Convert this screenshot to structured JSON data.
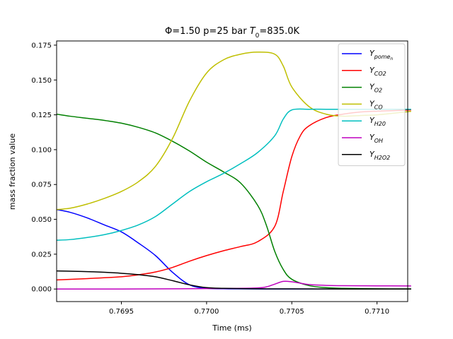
{
  "chart_data": {
    "type": "line",
    "title_prefix": "Φ=1.50 p=25 bar ",
    "title_var": "T",
    "title_sub": "0",
    "title_suffix": "=835.0K",
    "xlabel": "Time (ms)",
    "ylabel": "mass fraction value",
    "xlim": [
      0.76912,
      0.77118
    ],
    "ylim": [
      -0.009,
      0.178
    ],
    "x_ticks": [
      0.7695,
      0.77,
      0.7705,
      0.771
    ],
    "x_tick_labels": [
      "0.7695",
      "0.7700",
      "0.7705",
      "0.7710"
    ],
    "y_ticks": [
      0.0,
      0.025,
      0.05,
      0.075,
      0.1,
      0.125,
      0.15,
      0.175
    ],
    "y_tick_labels": [
      "0.000",
      "0.025",
      "0.050",
      "0.075",
      "0.100",
      "0.125",
      "0.150",
      "0.175"
    ],
    "grid": false,
    "legend_position": "top-right",
    "series": [
      {
        "name": "Y_pome_n",
        "label_main": "Y",
        "label_sub": "pome",
        "label_subsub": "n",
        "color": "#0000ff",
        "x": [
          0.76912,
          0.7692,
          0.7693,
          0.7694,
          0.7695,
          0.7696,
          0.7697,
          0.7698,
          0.7699,
          0.77,
          0.7701,
          0.7702,
          0.7704,
          0.7706,
          0.7708,
          0.771,
          0.7712
        ],
        "y": [
          0.057,
          0.055,
          0.051,
          0.046,
          0.041,
          0.033,
          0.024,
          0.012,
          0.003,
          0.0005,
          0.0002,
          0.0001,
          0.0,
          0.0,
          0.0,
          0.0,
          0.0
        ]
      },
      {
        "name": "Y_CO2",
        "label_main": "Y",
        "label_sub": "CO2",
        "label_subsub": "",
        "color": "#ff0000",
        "x": [
          0.76912,
          0.7693,
          0.7695,
          0.7696,
          0.7697,
          0.7698,
          0.7699,
          0.77,
          0.7701,
          0.7702,
          0.7703,
          0.7703,
          0.7704,
          0.77045,
          0.7705,
          0.77055,
          0.7706,
          0.7707,
          0.7708,
          0.7709,
          0.771,
          0.7711,
          0.7712
        ],
        "y": [
          0.0065,
          0.0075,
          0.0088,
          0.0102,
          0.0122,
          0.0155,
          0.02,
          0.024,
          0.0275,
          0.0305,
          0.034,
          0.034,
          0.045,
          0.07,
          0.095,
          0.11,
          0.117,
          0.123,
          0.1255,
          0.127,
          0.1276,
          0.128,
          0.1285
        ]
      },
      {
        "name": "Y_O2",
        "label_main": "Y",
        "label_sub": "O2",
        "label_subsub": "",
        "color": "#008000",
        "x": [
          0.76912,
          0.7692,
          0.7693,
          0.7694,
          0.7695,
          0.7696,
          0.7697,
          0.7698,
          0.7699,
          0.77,
          0.7701,
          0.7702,
          0.7703,
          0.77035,
          0.7704,
          0.77045,
          0.7705,
          0.7706,
          0.7707,
          0.7708,
          0.771,
          0.7712
        ],
        "y": [
          0.1255,
          0.124,
          0.1225,
          0.121,
          0.119,
          0.116,
          0.112,
          0.106,
          0.099,
          0.091,
          0.084,
          0.076,
          0.06,
          0.046,
          0.027,
          0.014,
          0.007,
          0.0025,
          0.001,
          0.0005,
          0.0002,
          0.0001
        ]
      },
      {
        "name": "Y_CO",
        "label_main": "Y",
        "label_sub": "CO",
        "label_subsub": "",
        "color": "#bfbf00",
        "x": [
          0.76912,
          0.7692,
          0.7693,
          0.7694,
          0.7695,
          0.7696,
          0.7697,
          0.7698,
          0.7699,
          0.77,
          0.7701,
          0.7702,
          0.7703,
          0.7704,
          0.77045,
          0.7705,
          0.7706,
          0.7707,
          0.7708,
          0.7709,
          0.771,
          0.7711,
          0.7712
        ],
        "y": [
          0.057,
          0.058,
          0.061,
          0.065,
          0.07,
          0.077,
          0.088,
          0.108,
          0.135,
          0.155,
          0.1645,
          0.1685,
          0.17,
          0.1685,
          0.16,
          0.145,
          0.131,
          0.1255,
          0.124,
          0.1245,
          0.125,
          0.1262,
          0.1275
        ]
      },
      {
        "name": "Y_H20",
        "label_main": "Y",
        "label_sub": "H20",
        "label_subsub": "",
        "color": "#00bfbf",
        "x": [
          0.76912,
          0.7692,
          0.7693,
          0.7694,
          0.7695,
          0.7696,
          0.7697,
          0.7698,
          0.7699,
          0.77,
          0.7701,
          0.7702,
          0.7703,
          0.7704,
          0.77045,
          0.7705,
          0.7706,
          0.7707,
          0.7708,
          0.771,
          0.7712
        ],
        "y": [
          0.035,
          0.0355,
          0.037,
          0.039,
          0.042,
          0.046,
          0.052,
          0.061,
          0.07,
          0.077,
          0.083,
          0.09,
          0.098,
          0.11,
          0.122,
          0.1285,
          0.129,
          0.129,
          0.129,
          0.129,
          0.129
        ]
      },
      {
        "name": "Y_OH",
        "label_main": "Y",
        "label_sub": "OH",
        "label_subsub": "",
        "color": "#bf00bf",
        "x": [
          0.76912,
          0.7695,
          0.77,
          0.7702,
          0.7703,
          0.77035,
          0.7704,
          0.77045,
          0.7705,
          0.77055,
          0.7706,
          0.7707,
          0.7708,
          0.771,
          0.7712
        ],
        "y": [
          0.0,
          0.0,
          0.0003,
          0.0005,
          0.0008,
          0.0015,
          0.0035,
          0.0055,
          0.0052,
          0.0042,
          0.0032,
          0.0026,
          0.0024,
          0.0023,
          0.0022
        ]
      },
      {
        "name": "Y_H2O2",
        "label_main": "Y",
        "label_sub": "H2O2",
        "label_subsub": "",
        "color": "#000000",
        "x": [
          0.76912,
          0.7692,
          0.7693,
          0.7694,
          0.7695,
          0.7696,
          0.7697,
          0.7698,
          0.7699,
          0.77,
          0.7701,
          0.7703,
          0.7705,
          0.7708,
          0.7712
        ],
        "y": [
          0.013,
          0.0128,
          0.0125,
          0.012,
          0.0113,
          0.0103,
          0.0088,
          0.006,
          0.003,
          0.001,
          0.0005,
          0.0002,
          0.0001,
          0.0,
          0.0
        ]
      }
    ]
  }
}
